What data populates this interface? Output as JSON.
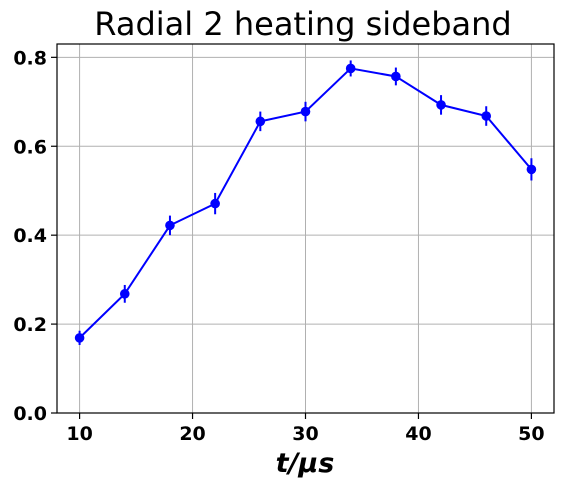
{
  "chart_data": {
    "type": "line",
    "title": "Radial 2 heating sideband",
    "xlabel": "t/μs",
    "ylabel": "",
    "xlim": [
      8,
      52
    ],
    "ylim": [
      0,
      0.83
    ],
    "xticks": [
      10,
      20,
      30,
      40,
      50
    ],
    "xtick_labels": [
      "10",
      "20",
      "30",
      "40",
      "50"
    ],
    "yticks": [
      0.0,
      0.2,
      0.4,
      0.6,
      0.8
    ],
    "ytick_labels": [
      "0.0",
      "0.2",
      "0.4",
      "0.6",
      "0.8"
    ],
    "grid": true,
    "legend": "none",
    "color": "#0000ff",
    "series": [
      {
        "x": [
          10,
          14,
          18,
          22,
          26,
          30,
          34,
          38,
          42,
          46,
          50
        ],
        "y": [
          0.169,
          0.268,
          0.422,
          0.471,
          0.656,
          0.678,
          0.775,
          0.757,
          0.693,
          0.668,
          0.548
        ],
        "yerr": [
          0.016,
          0.02,
          0.022,
          0.024,
          0.022,
          0.022,
          0.018,
          0.02,
          0.022,
          0.022,
          0.025
        ]
      }
    ]
  }
}
